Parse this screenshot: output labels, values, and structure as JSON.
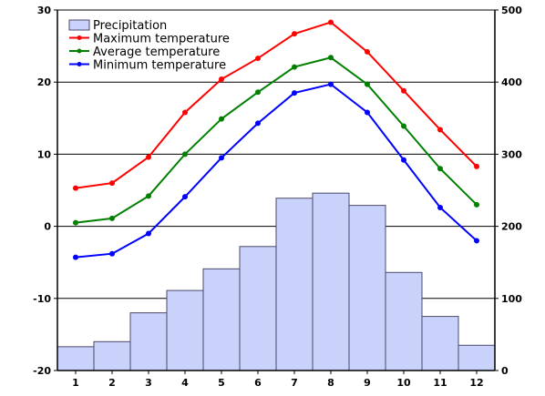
{
  "chart_data": {
    "type": "bar+line",
    "categories": [
      "1",
      "2",
      "3",
      "4",
      "5",
      "6",
      "7",
      "8",
      "9",
      "10",
      "11",
      "12"
    ],
    "left_axis": {
      "ylim": [
        -20,
        30
      ],
      "ticks": [
        "-20",
        "-10",
        "0",
        "10",
        "20",
        "30"
      ]
    },
    "right_axis": {
      "ylim": [
        0,
        500
      ],
      "ticks": [
        "0",
        "100",
        "200",
        "300",
        "400",
        "500"
      ]
    },
    "grid": "horizontal at left-axis ticks",
    "legend_position": "top-left",
    "bars": {
      "name": "Precipitation",
      "axis": "right",
      "values": [
        33,
        40,
        80,
        111,
        141,
        172,
        239,
        246,
        229,
        136,
        75,
        35
      ],
      "color": "#c8d2fb",
      "edge": "#4a4a6a"
    },
    "series": [
      {
        "name": "Maximum temperature",
        "axis": "left",
        "color": "#ff0000",
        "values": [
          5.3,
          6.0,
          9.6,
          15.8,
          20.4,
          23.3,
          26.7,
          28.3,
          24.2,
          18.8,
          13.4,
          8.3
        ]
      },
      {
        "name": "Average temperature",
        "axis": "left",
        "color": "#008000",
        "values": [
          0.5,
          1.1,
          4.2,
          10.0,
          14.9,
          18.6,
          22.1,
          23.4,
          19.7,
          13.9,
          8.0,
          3.0
        ]
      },
      {
        "name": "Minimum temperature",
        "axis": "left",
        "color": "#0000ff",
        "values": [
          -4.3,
          -3.8,
          -1.0,
          4.1,
          9.5,
          14.3,
          18.5,
          19.7,
          15.8,
          9.2,
          2.6,
          -2.0
        ]
      }
    ]
  }
}
